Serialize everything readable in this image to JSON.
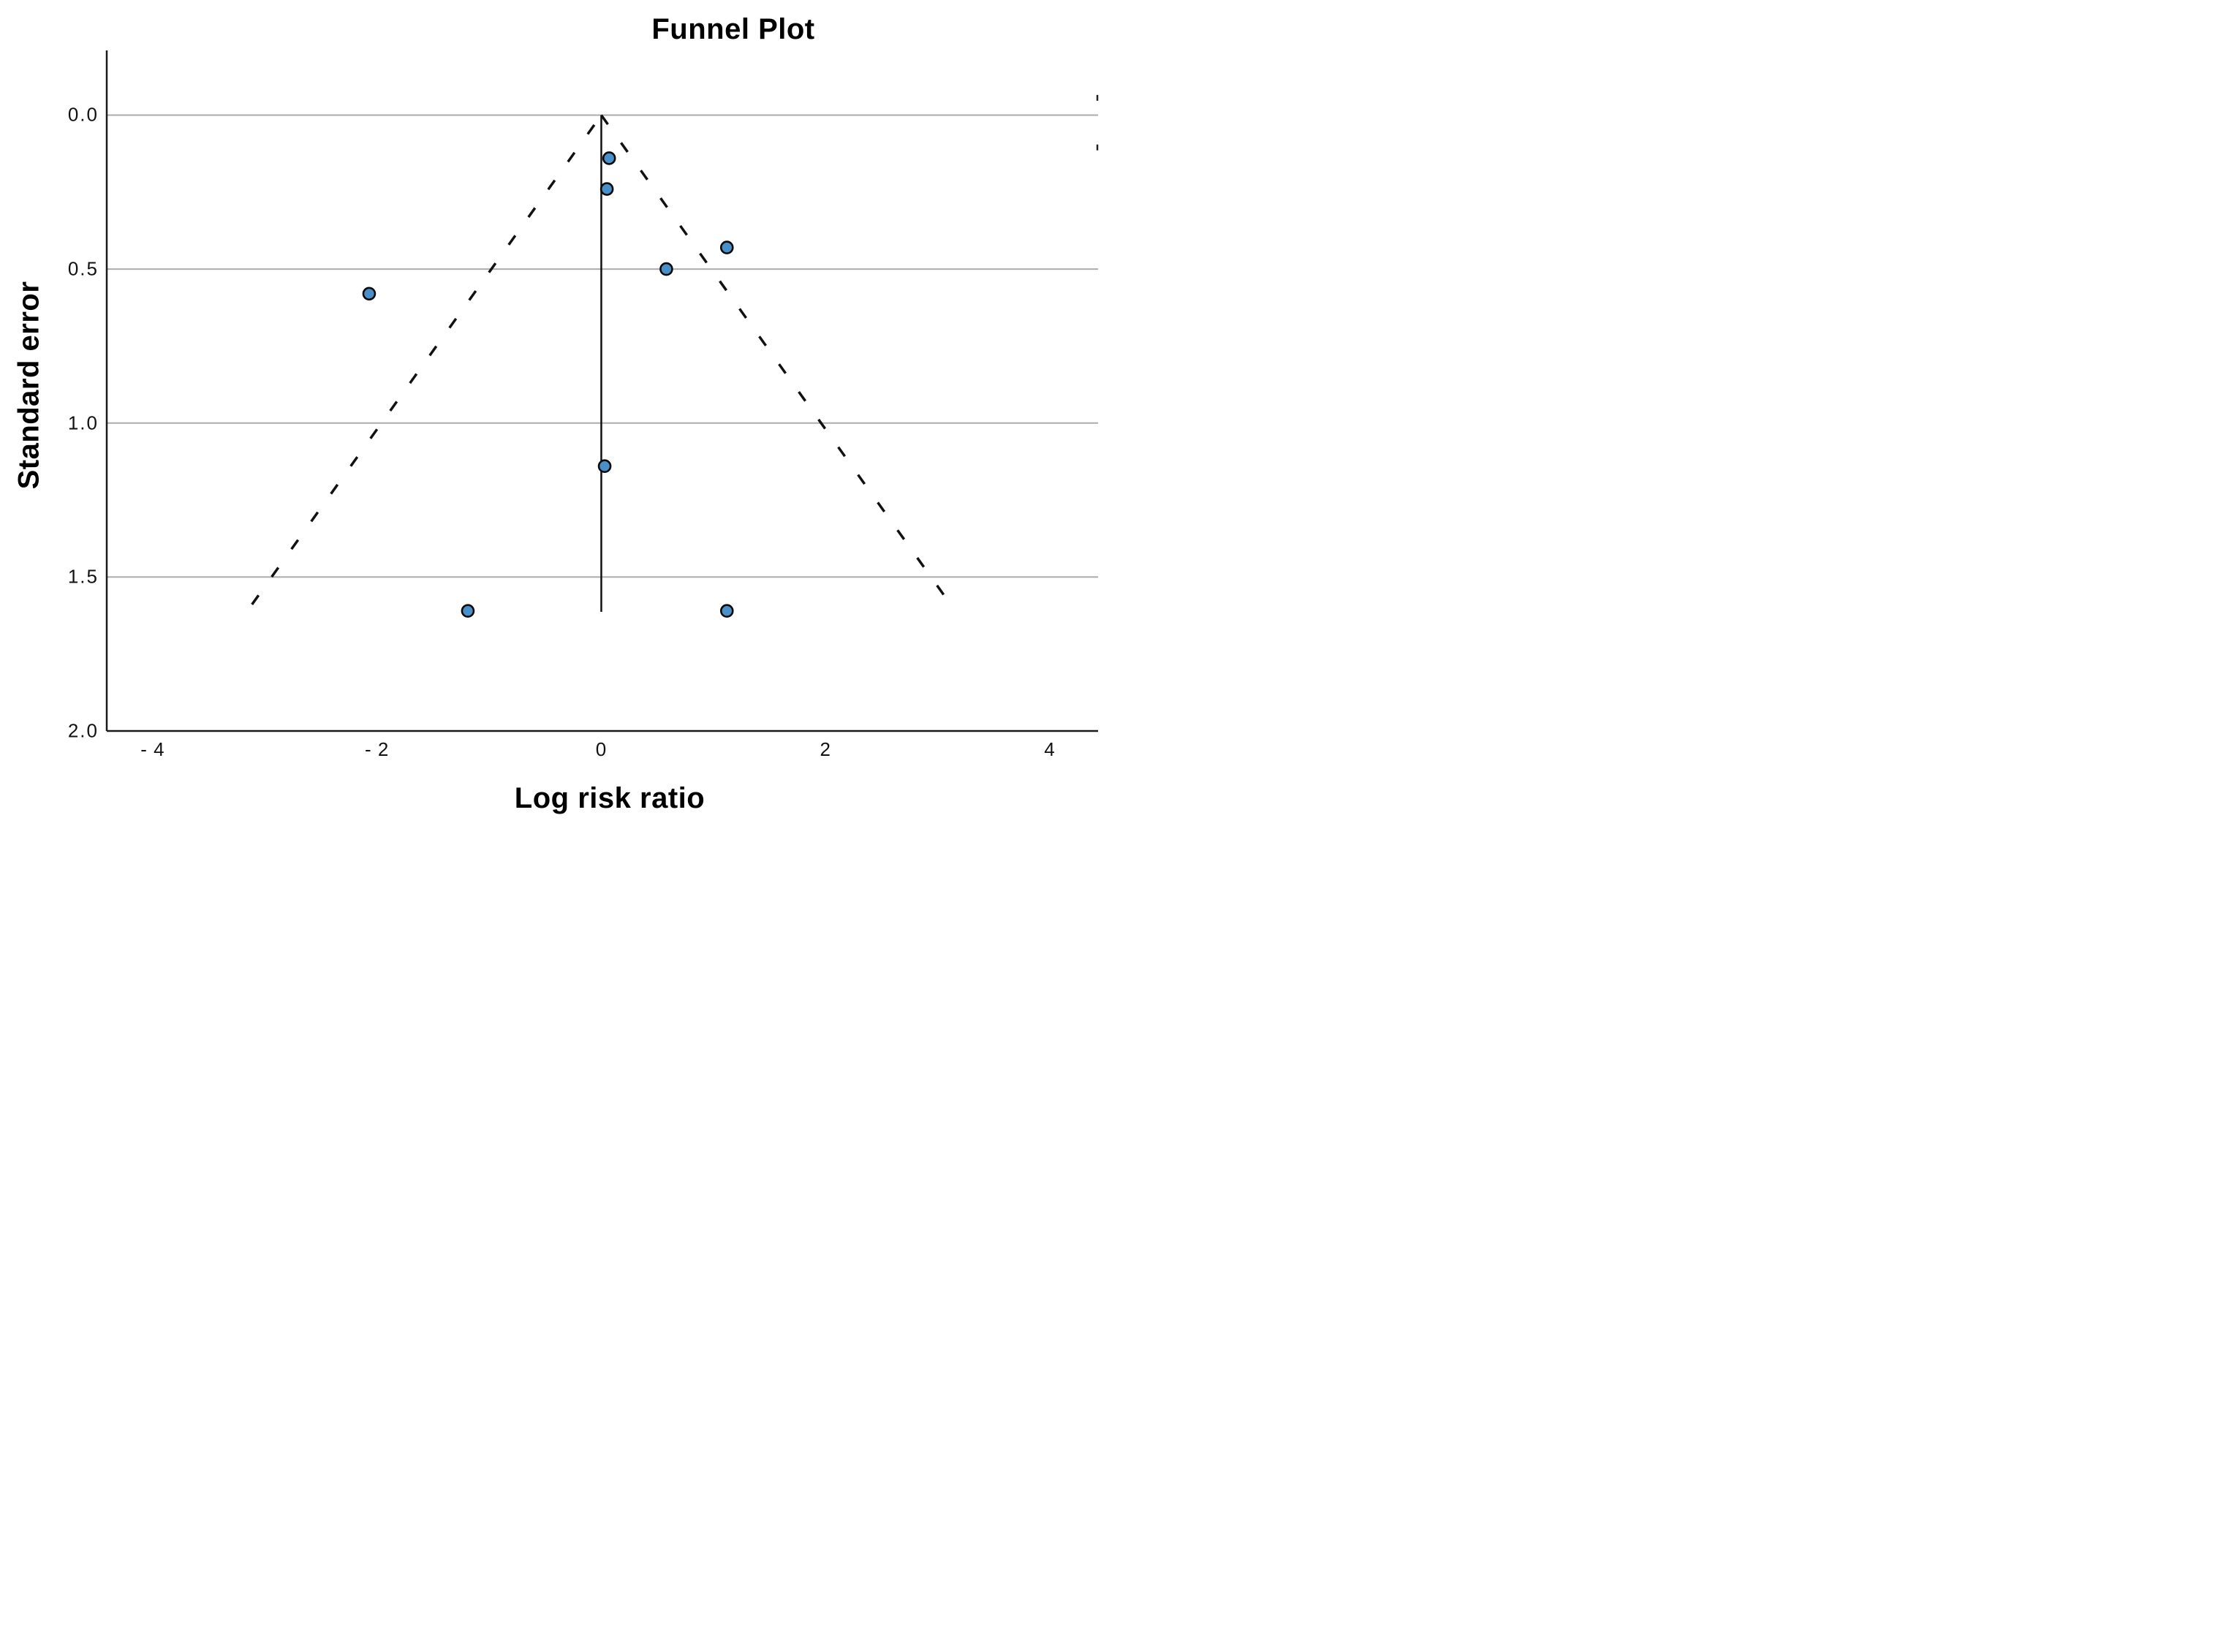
{
  "figure": {
    "title": "Funnel Plot",
    "xlabel": "Log risk ratio",
    "ylabel": "Standard error"
  },
  "chart_data": {
    "type": "scatter",
    "subtype": "funnel_plot_meta_analysis",
    "title": "Funnel Plot",
    "xlabel": "Log risk ratio",
    "ylabel": "Standard error",
    "grid": "horizontal-only",
    "legend": "none",
    "x_axis": {
      "min": -4.41,
      "max": 4.43,
      "ticks": [
        {
          "value": -4,
          "label": "- 4"
        },
        {
          "value": -2,
          "label": "- 2"
        },
        {
          "value": 0,
          "label": "0"
        },
        {
          "value": 2,
          "label": "2"
        },
        {
          "value": 4,
          "label": "4"
        }
      ]
    },
    "y_axis": {
      "min": -0.21,
      "max": 2.0,
      "inverted": true,
      "ticks": [
        {
          "value": 0.0,
          "label": "0.0",
          "gridline": true
        },
        {
          "value": 0.5,
          "label": "0.5",
          "gridline": true
        },
        {
          "value": 1.0,
          "label": "1.0",
          "gridline": true
        },
        {
          "value": 1.5,
          "label": "1.5",
          "gridline": true
        },
        {
          "value": 2.0,
          "label": "2.0",
          "gridline": false
        }
      ]
    },
    "points": [
      {
        "x": 0.07,
        "se": 0.14
      },
      {
        "x": 0.05,
        "se": 0.24
      },
      {
        "x": 1.12,
        "se": 0.43
      },
      {
        "x": 0.58,
        "se": 0.5
      },
      {
        "x": -2.07,
        "se": 0.58
      },
      {
        "x": 0.03,
        "se": 1.14
      },
      {
        "x": -1.19,
        "se": 1.61
      },
      {
        "x": 1.12,
        "se": 1.61
      }
    ],
    "funnel": {
      "center_x": 0,
      "apex_se": 0,
      "slope_x_per_se": 1.96,
      "bottom_se": 1.615,
      "style": "dashed"
    },
    "effect_line": {
      "x": 0,
      "se_from": 0,
      "se_to": 1.613,
      "style": "solid"
    },
    "right_edge_marks_se": [
      -0.056,
      0.105
    ],
    "colors": {
      "point_fill": "#4a90c8",
      "point_stroke": "#0a0a0a",
      "gridline": "#ababab",
      "axis": "#1a1a1a",
      "funnel_line": "#111111",
      "effect_line": "#111111",
      "background": "#ffffff"
    }
  }
}
